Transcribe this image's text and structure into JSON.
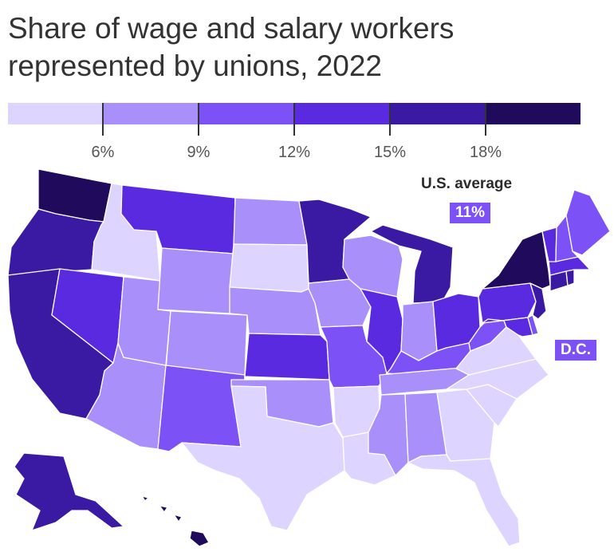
{
  "title": "Share of wage and salary workers represented by unions, 2022",
  "legend": {
    "colors": [
      "#ddd5ff",
      "#a98ff9",
      "#7c52f6",
      "#5a2ae0",
      "#3a1aa3",
      "#1f0a5c"
    ],
    "ticks": [
      "6%",
      "9%",
      "12%",
      "15%",
      "18%"
    ]
  },
  "us_average": {
    "label": "U.S. average",
    "value": "11%"
  },
  "dc": {
    "label": "D.C."
  },
  "chart_data": {
    "type": "choropleth",
    "year": 2022,
    "unit": "percent",
    "bins": [
      {
        "range": "<6%",
        "color": "#ddd5ff"
      },
      {
        "range": "6–9%",
        "color": "#a98ff9"
      },
      {
        "range": "9–12%",
        "color": "#7c52f6"
      },
      {
        "range": "12–15%",
        "color": "#5a2ae0"
      },
      {
        "range": "15–18%",
        "color": "#3a1aa3"
      },
      {
        "range": "≥18%",
        "color": "#1f0a5c"
      }
    ],
    "states": [
      {
        "code": "WA",
        "bin": 5
      },
      {
        "code": "OR",
        "bin": 4
      },
      {
        "code": "CA",
        "bin": 4
      },
      {
        "code": "ID",
        "bin": 0
      },
      {
        "code": "NV",
        "bin": 3
      },
      {
        "code": "AZ",
        "bin": 1
      },
      {
        "code": "UT",
        "bin": 1
      },
      {
        "code": "MT",
        "bin": 3
      },
      {
        "code": "WY",
        "bin": 1
      },
      {
        "code": "CO",
        "bin": 1
      },
      {
        "code": "NM",
        "bin": 2
      },
      {
        "code": "ND",
        "bin": 1
      },
      {
        "code": "SD",
        "bin": 0
      },
      {
        "code": "NE",
        "bin": 1
      },
      {
        "code": "KS",
        "bin": 3
      },
      {
        "code": "OK",
        "bin": 1
      },
      {
        "code": "TX",
        "bin": 0
      },
      {
        "code": "MN",
        "bin": 4
      },
      {
        "code": "IA",
        "bin": 1
      },
      {
        "code": "MO",
        "bin": 2
      },
      {
        "code": "AR",
        "bin": 0
      },
      {
        "code": "LA",
        "bin": 0
      },
      {
        "code": "WI",
        "bin": 1
      },
      {
        "code": "IL",
        "bin": 3
      },
      {
        "code": "MI",
        "bin": 4
      },
      {
        "code": "IN",
        "bin": 1
      },
      {
        "code": "OH",
        "bin": 3
      },
      {
        "code": "KY",
        "bin": 2
      },
      {
        "code": "TN",
        "bin": 1
      },
      {
        "code": "MS",
        "bin": 1
      },
      {
        "code": "AL",
        "bin": 1
      },
      {
        "code": "GA",
        "bin": 0
      },
      {
        "code": "FL",
        "bin": 0
      },
      {
        "code": "SC",
        "bin": 0
      },
      {
        "code": "NC",
        "bin": 0
      },
      {
        "code": "VA",
        "bin": 0
      },
      {
        "code": "WV",
        "bin": 2
      },
      {
        "code": "PA",
        "bin": 3
      },
      {
        "code": "NY",
        "bin": 5
      },
      {
        "code": "ME",
        "bin": 2
      },
      {
        "code": "NH",
        "bin": 2
      },
      {
        "code": "VT",
        "bin": 3
      },
      {
        "code": "MA",
        "bin": 3
      },
      {
        "code": "RI",
        "bin": 4
      },
      {
        "code": "CT",
        "bin": 4
      },
      {
        "code": "NJ",
        "bin": 4
      },
      {
        "code": "DE",
        "bin": 2
      },
      {
        "code": "MD",
        "bin": 3
      },
      {
        "code": "DC",
        "bin": 2
      },
      {
        "code": "AK",
        "bin": 4
      },
      {
        "code": "HI",
        "bin": 5
      }
    ]
  }
}
